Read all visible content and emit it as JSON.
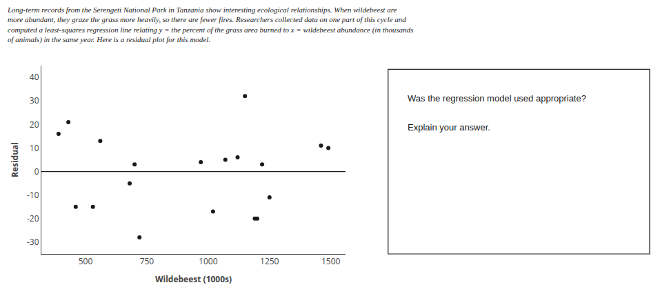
{
  "chart_data": {
    "type": "scatter",
    "subtitle": [
      "Long-term records from the Serengeti National Park in Tanzania show interesting ecological relationships. When wildebeest are",
      "more abundant, they graze the grass more heavily, so there are fewer fires. Researchers collected data on one part of this cycle and",
      "computed a least-squares regression line relating y = the percent of the grass area burned to x = wildebeest abundance (in thousands",
      "of animals) in the same year. Here is a residual plot for this model."
    ],
    "annotations": [
      "Was the regression model used appropriate?",
      "Explain your answer."
    ],
    "x_label": "Wildebeest (1000s)",
    "y_label": "Residual",
    "x": [
      390,
      430,
      460,
      530,
      560,
      680,
      700,
      720,
      970,
      1020,
      1070,
      1120,
      1150,
      1190,
      1200,
      1220,
      1250,
      1460,
      1490
    ],
    "values": [
      16,
      21,
      -15,
      -15,
      13,
      -5,
      3,
      -28,
      4,
      -17,
      5,
      6,
      32,
      -20,
      -20,
      3,
      -11,
      11,
      10
    ],
    "color": "#1a1a1a",
    "hline": 0,
    "xlim": [
      320,
      1560
    ],
    "ylim": [
      -35,
      45
    ],
    "xticks": [
      500,
      750,
      1000,
      1250,
      1500
    ],
    "yticks": [
      -30,
      -20,
      -10,
      0,
      10,
      20,
      30,
      40
    ],
    "grid": false
  }
}
